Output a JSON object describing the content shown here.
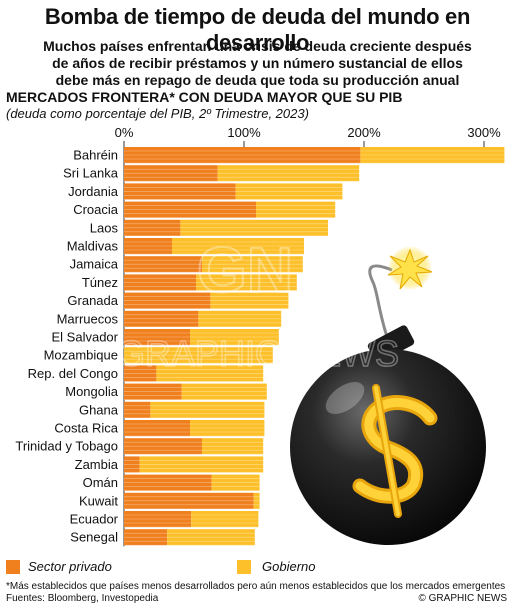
{
  "title": "Bomba de tiempo de deuda del mundo en desarrollo",
  "subtitle_lines": [
    "Muchos países enfrentan una crisis de deuda creciente después",
    "de años de recibir préstamos y un número sustancial de ellos",
    "debe más en repago de deuda que toda su producción anual"
  ],
  "section_heading": "MERCADOS FRONTERA* CON DEUDA MAYOR QUE SU PIB",
  "section_subheading": "(deuda como porcentaje del PIB, 2º Trimestre, 2023)",
  "footnote": "*Más establecidos que países menos desarrollados pero aún menos establecidos que los mercados emergentes",
  "sources": "Fuentes: Bloomberg, Investopedia",
  "credit": "© GRAPHIC NEWS",
  "watermark": {
    "logo": "GN",
    "text": "GRAPHIC NEWS"
  },
  "colors": {
    "private": "#f07f1e",
    "government": "#fdc02a",
    "stripe": "#ffffff",
    "axis": "#333333"
  },
  "chart_data": {
    "type": "bar",
    "orientation": "horizontal",
    "stacked": true,
    "xlim": [
      0,
      320
    ],
    "ticks": [
      0,
      100,
      200,
      300
    ],
    "tick_labels": [
      "0%",
      "100%",
      "200%",
      "300%"
    ],
    "categories": [
      "Bahréin",
      "Sri Lanka",
      "Jordania",
      "Croacia",
      "Laos",
      "Maldivas",
      "Jamaica",
      "Túnez",
      "Granada",
      "Marruecos",
      "El Salvador",
      "Mozambique",
      "Rep. del Congo",
      "Mongolia",
      "Ghana",
      "Costa Rica",
      "Trinidad y Tobago",
      "Zambia",
      "Omán",
      "Kuwait",
      "Ecuador",
      "Senegal"
    ],
    "series": [
      {
        "name": "Sector privado",
        "values": [
          197,
          78,
          93,
          110,
          47,
          40,
          65,
          60,
          72,
          62,
          55,
          0,
          27,
          48,
          22,
          55,
          65,
          13,
          73,
          108,
          56,
          36
        ]
      },
      {
        "name": "Gobierno",
        "values": [
          120,
          118,
          89,
          66,
          123,
          110,
          84,
          84,
          65,
          69,
          74,
          124,
          89,
          71,
          95,
          62,
          51,
          103,
          40,
          5,
          56,
          73
        ]
      }
    ],
    "legend_position": "bottom-left"
  }
}
